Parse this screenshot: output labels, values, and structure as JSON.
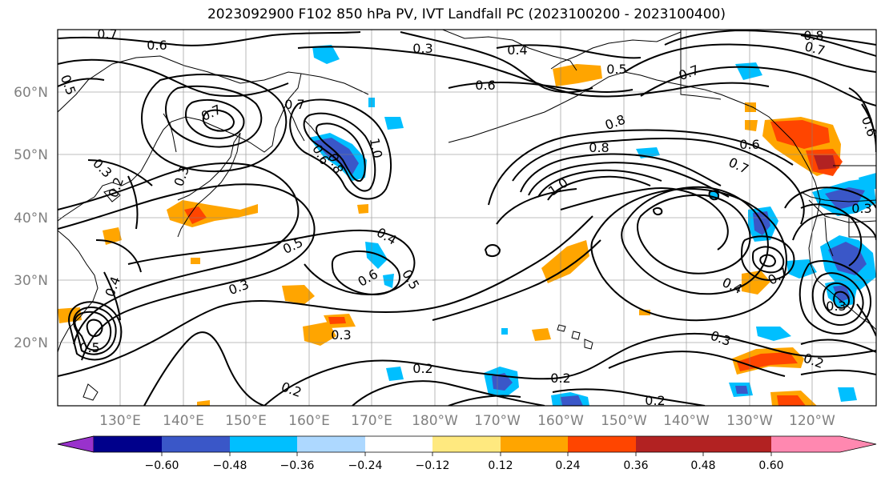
{
  "title": "2023092900 F102 850 hPa PV, IVT Landfall PC (2023100200 - 2023100400)",
  "map": {
    "lat_labels": [
      "60°N",
      "50°N",
      "40°N",
      "30°N",
      "20°N"
    ],
    "lon_labels": [
      "130°E",
      "140°E",
      "150°E",
      "160°E",
      "170°E",
      "180°W",
      "170°W",
      "160°W",
      "150°W",
      "140°W",
      "130°W",
      "120°W"
    ],
    "contour_labels": [
      "0.7",
      "0.6",
      "0.5",
      "0.7",
      "0.7",
      "0.3",
      "0.3",
      "0.2",
      "0.3",
      "0.6",
      "0.4",
      "0.6",
      "0.5",
      "0.7",
      "0.8",
      "0.8",
      "0.8",
      "0.6",
      "0.7",
      "1.0",
      "1.0",
      "0.5",
      "0.4",
      "0.5",
      "0.6",
      "0.3",
      "0.4",
      "0.3",
      "0.2",
      "0.2",
      "0.2",
      "0.2",
      "0.3",
      "0.4",
      "0.7",
      "0.3",
      "0.3",
      "0.5",
      "0.6",
      "0.7",
      "0.8",
      "0.2"
    ]
  },
  "colorbar": {
    "colors": [
      "#9932cc",
      "#00008b",
      "#3a57c8",
      "#00bfff",
      "#add8ff",
      "#ffffff",
      "#ffe97f",
      "#ffa500",
      "#ff4500",
      "#b22222",
      "#ff88b0"
    ],
    "tick_labels": [
      "−0.60",
      "−0.48",
      "−0.36",
      "−0.24",
      "−0.12",
      "0.12",
      "0.24",
      "0.36",
      "0.48",
      "0.60"
    ]
  }
}
